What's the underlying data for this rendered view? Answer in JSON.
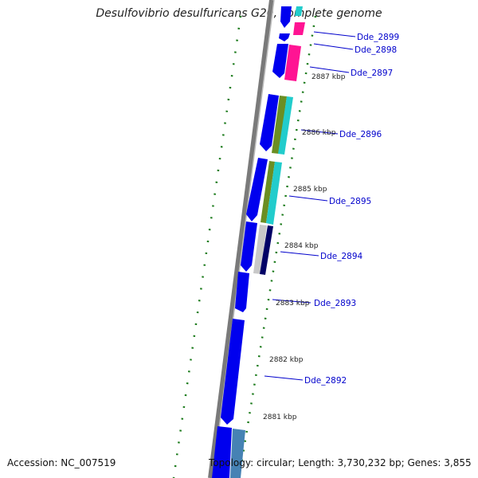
{
  "title": "Desulfovibrio desulfuricans G20, complete genome",
  "accession": "Accession: NC_007519",
  "topology": "Topology: circular; Length: 3,730,232 bp; Genes: 3,855",
  "kbp_labels": [
    "2887 kbp",
    "2886 kbp",
    "2885 kbp",
    "2884 kbp",
    "2883 kbp",
    "2882 kbp",
    "2881 kbp"
  ],
  "gene_labels": [
    "Dde_2899",
    "Dde_2898",
    "Dde_2897",
    "Dde_2896",
    "Dde_2895",
    "Dde_2894",
    "Dde_2893",
    "Dde_2892"
  ],
  "colors": {
    "backbone": "#7a7a7a",
    "gene_blue": "#0000ee",
    "gc_skew": "#1a7a1a",
    "label": "#0000cc",
    "pink": "#ff1493",
    "cyan": "#22cccc",
    "olive": "#6b8e23",
    "steel": "#4682b4",
    "navy": "#000066",
    "gray": "#c8c8c8"
  }
}
